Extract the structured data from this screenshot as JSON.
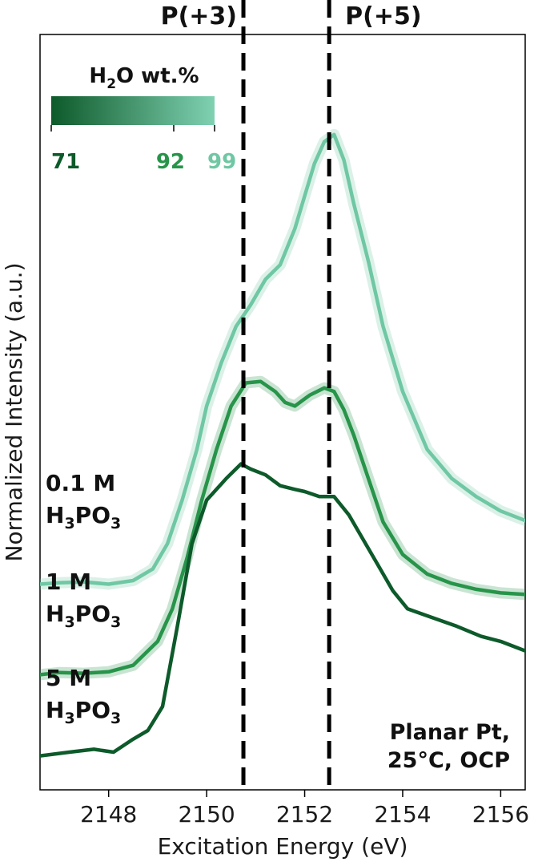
{
  "chart_data": {
    "type": "line",
    "title": "",
    "xlabel": "Excitation Energy (eV)",
    "ylabel": "Normalized Intensity (a.u.)",
    "xlim": [
      2146.6,
      2156.5
    ],
    "ylim": [
      0,
      1
    ],
    "xticks": [
      "2148",
      "2150",
      "2152",
      "2154",
      "2156"
    ],
    "xtick_values": [
      2148,
      2150,
      2152,
      2154,
      2156
    ],
    "reference_lines": [
      {
        "label": "P(+3)",
        "x": 2150.75
      },
      {
        "label": "P(+5)",
        "x": 2152.5
      }
    ],
    "colorbar": {
      "title_main": "H",
      "title_sub": "2",
      "title_rest": "O wt.%",
      "range": [
        71,
        99
      ],
      "ticks": [
        {
          "label": "71",
          "value": 71,
          "color": "#0d5a2a"
        },
        {
          "label": "92",
          "value": 92,
          "color": "#27944a"
        },
        {
          "label": "99",
          "value": 99,
          "color": "#6fc7a4"
        }
      ],
      "color_low": "#0d5a2a",
      "color_high": "#7fd1b2"
    },
    "annotation": {
      "line1": "Planar Pt,",
      "line2": "25°C, OCP"
    },
    "series": [
      {
        "name": "0.1 M H3PO3",
        "label_line1": "0.1 M",
        "label_formula": [
          "H",
          "3",
          "PO",
          "3"
        ],
        "h2o_wt_pct": 99,
        "color": "#6fc7a4",
        "band": true,
        "x": [
          2146.6,
          2147.0,
          2147.5,
          2148.0,
          2148.5,
          2148.9,
          2149.2,
          2149.5,
          2149.8,
          2150.0,
          2150.3,
          2150.6,
          2150.9,
          2151.2,
          2151.5,
          2151.8,
          2152.0,
          2152.2,
          2152.4,
          2152.6,
          2152.8,
          2153.0,
          2153.3,
          2153.6,
          2154.0,
          2154.5,
          2155.0,
          2155.5,
          2156.0,
          2156.5
        ],
        "y": [
          0.284,
          0.286,
          0.287,
          0.284,
          0.289,
          0.305,
          0.34,
          0.4,
          0.47,
          0.53,
          0.59,
          0.64,
          0.67,
          0.705,
          0.725,
          0.775,
          0.82,
          0.865,
          0.895,
          0.905,
          0.87,
          0.81,
          0.73,
          0.64,
          0.55,
          0.47,
          0.43,
          0.405,
          0.385,
          0.372
        ]
      },
      {
        "name": "1 M H3PO3",
        "label_line1": "1 M",
        "label_formula": [
          "H",
          "3",
          "PO",
          "3"
        ],
        "h2o_wt_pct": 92,
        "color": "#27944a",
        "band": true,
        "x": [
          2146.6,
          2147.0,
          2147.5,
          2148.0,
          2148.5,
          2149.0,
          2149.3,
          2149.6,
          2149.9,
          2150.2,
          2150.5,
          2150.8,
          2151.1,
          2151.4,
          2151.6,
          2151.8,
          2152.1,
          2152.4,
          2152.6,
          2152.8,
          2153.0,
          2153.3,
          2153.6,
          2154.0,
          2154.5,
          2155.0,
          2155.5,
          2156.0,
          2156.5
        ],
        "y": [
          0.159,
          0.162,
          0.161,
          0.163,
          0.172,
          0.205,
          0.25,
          0.32,
          0.4,
          0.47,
          0.53,
          0.562,
          0.564,
          0.55,
          0.535,
          0.53,
          0.545,
          0.555,
          0.55,
          0.525,
          0.49,
          0.43,
          0.37,
          0.325,
          0.298,
          0.285,
          0.277,
          0.272,
          0.27
        ]
      },
      {
        "name": "5 M H3PO3",
        "label_line1": "5 M",
        "label_formula": [
          "H",
          "3",
          "PO",
          "3"
        ],
        "h2o_wt_pct": 71,
        "color": "#0d5a2a",
        "band": false,
        "x": [
          2146.6,
          2147.2,
          2147.7,
          2148.1,
          2148.5,
          2148.8,
          2149.1,
          2149.4,
          2149.7,
          2150.0,
          2150.4,
          2150.7,
          2150.9,
          2151.2,
          2151.5,
          2151.8,
          2152.0,
          2152.3,
          2152.6,
          2152.9,
          2153.2,
          2153.5,
          2153.8,
          2154.1,
          2154.6,
          2155.1,
          2155.6,
          2156.0,
          2156.5
        ],
        "y": [
          0.047,
          0.052,
          0.056,
          0.052,
          0.07,
          0.082,
          0.115,
          0.225,
          0.34,
          0.4,
          0.43,
          0.45,
          0.443,
          0.435,
          0.42,
          0.415,
          0.412,
          0.405,
          0.405,
          0.38,
          0.345,
          0.31,
          0.275,
          0.25,
          0.238,
          0.226,
          0.212,
          0.205,
          0.192
        ]
      }
    ]
  }
}
